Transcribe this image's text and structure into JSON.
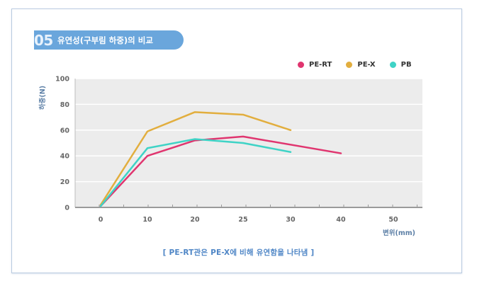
{
  "header": {
    "number": "05",
    "title": "유연성(구부림 하중)의 비교"
  },
  "caption": "[ PE-RT관은 PE-X에 비해 유연함을 나타냄 ]",
  "colors": {
    "pe_rt": "#e0356f",
    "pe_x": "#e2ae3e",
    "pb": "#3fd3c6",
    "accent": "#6aa6dc"
  },
  "chart_data": {
    "type": "line",
    "title": "유연성(구부림 하중)의 비교",
    "xlabel": "변위(mm)",
    "ylabel": "하중(N)",
    "xlim": [
      0,
      50
    ],
    "ylim": [
      0,
      100
    ],
    "xticks": [
      0,
      10,
      20,
      25,
      30,
      40,
      50
    ],
    "yticks": [
      0,
      20,
      40,
      60,
      80,
      100
    ],
    "legend_position": "top-right",
    "grid": true,
    "series": [
      {
        "name": "PE-RT",
        "color": "#e0356f",
        "x": [
          0,
          10,
          20,
          25,
          40
        ],
        "y": [
          1,
          40,
          52,
          55,
          42
        ]
      },
      {
        "name": "PE-X",
        "color": "#e2ae3e",
        "x": [
          0,
          10,
          20,
          25,
          30
        ],
        "y": [
          2,
          59,
          74,
          72,
          60
        ]
      },
      {
        "name": "PB",
        "color": "#3fd3c6",
        "x": [
          0,
          10,
          20,
          25,
          30
        ],
        "y": [
          1,
          46,
          53,
          50,
          43
        ]
      }
    ]
  }
}
